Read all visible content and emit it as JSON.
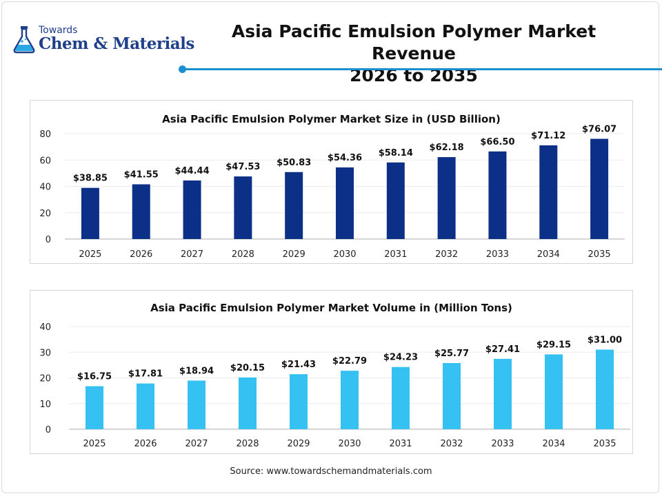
{
  "header": {
    "logo_top": "Towards",
    "logo_main": "Chem & Materials",
    "title_line1": "Asia Pacific Emulsion Polymer Market Revenue",
    "title_line2": "2026 to 2035",
    "accent_color": "#1d8fd0"
  },
  "footer": {
    "source": "Source: www.towardschemandmaterials.com"
  },
  "chart_data": [
    {
      "type": "bar",
      "title": "Asia Pacific Emulsion Polymer Market Size in (USD Billion)",
      "xlabel": "",
      "ylabel": "",
      "categories": [
        "2025",
        "2026",
        "2027",
        "2028",
        "2029",
        "2030",
        "2031",
        "2032",
        "2033",
        "2034",
        "2035"
      ],
      "values": [
        38.85,
        41.55,
        44.44,
        47.53,
        50.83,
        54.36,
        58.14,
        62.18,
        66.5,
        71.12,
        76.07
      ],
      "value_labels": [
        "$38.85",
        "$41.55",
        "$44.44",
        "$47.53",
        "$50.83",
        "$54.36",
        "$58.14",
        "$62.18",
        "$66.50",
        "$71.12",
        "$76.07"
      ],
      "ylim": [
        0,
        80
      ],
      "yticks": [
        0,
        20,
        40,
        60,
        80
      ],
      "grid": true,
      "bar_color": "#0c2f87"
    },
    {
      "type": "bar",
      "title": "Asia Pacific Emulsion Polymer Market Volume in (Million Tons)",
      "xlabel": "",
      "ylabel": "",
      "categories": [
        "2025",
        "2026",
        "2027",
        "2028",
        "2029",
        "2030",
        "2031",
        "2032",
        "2033",
        "2034",
        "2035"
      ],
      "values": [
        16.75,
        17.81,
        18.94,
        20.15,
        21.43,
        22.79,
        24.23,
        25.77,
        27.41,
        29.15,
        31.0
      ],
      "value_labels": [
        "$16.75",
        "$17.81",
        "$18.94",
        "$20.15",
        "$21.43",
        "$22.79",
        "$24.23",
        "$25.77",
        "$27.41",
        "$29.15",
        "$31.00"
      ],
      "ylim": [
        0,
        40
      ],
      "yticks": [
        0,
        10,
        20,
        30,
        40
      ],
      "grid": true,
      "bar_color": "#35c1f2"
    }
  ]
}
